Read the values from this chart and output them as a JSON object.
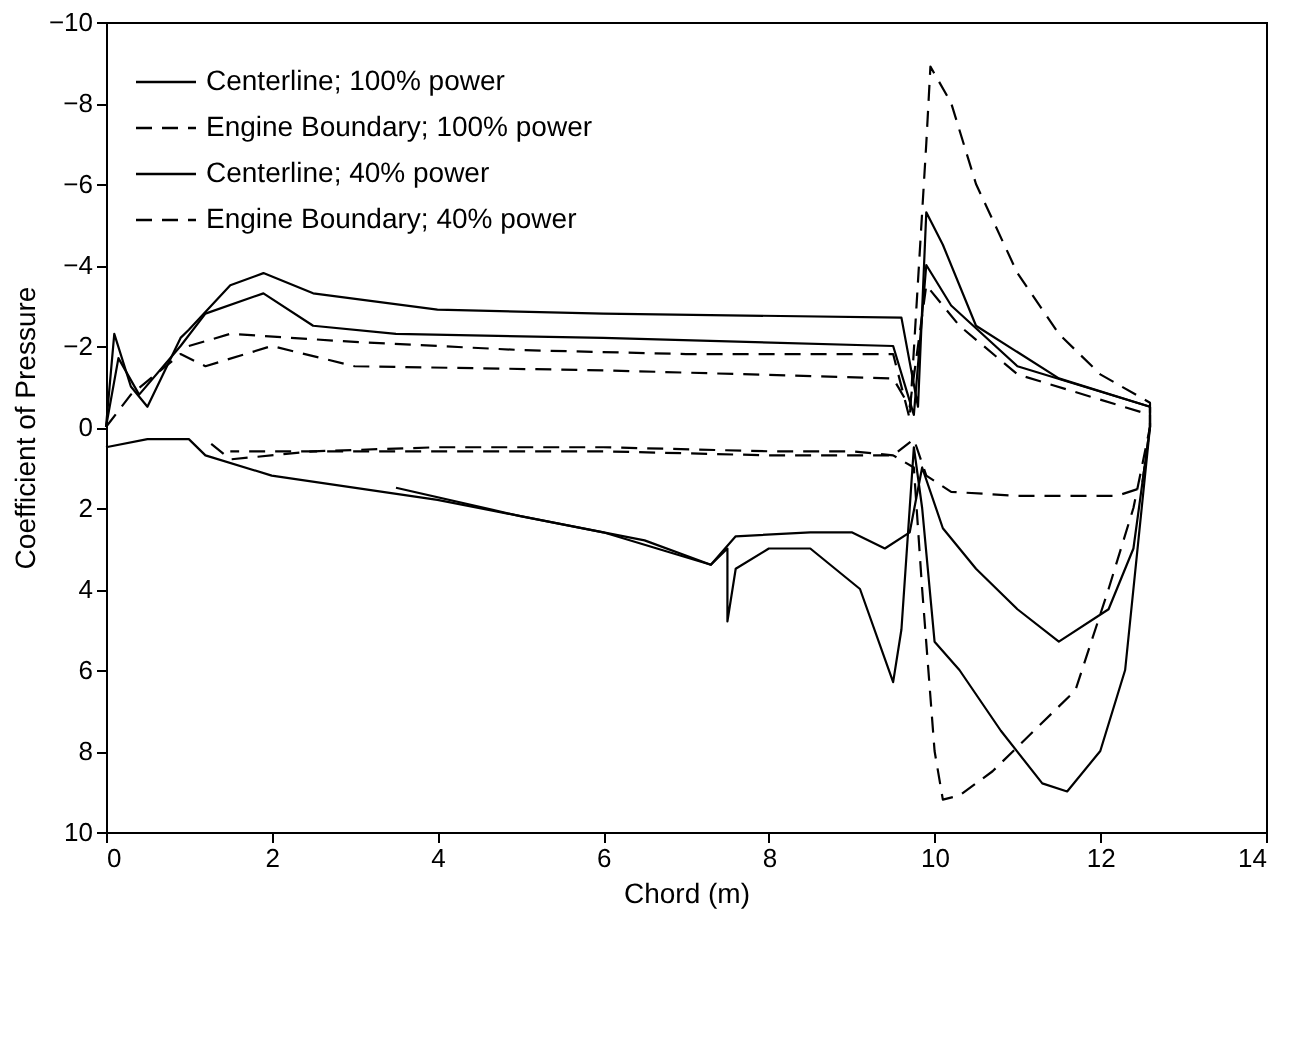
{
  "chart_data": {
    "type": "line",
    "xlabel": "Chord (m)",
    "ylabel": "Coefficient of Pressure",
    "xlim": [
      0,
      14
    ],
    "xticks": [
      0,
      2,
      4,
      6,
      8,
      10,
      12,
      14
    ],
    "ylim": [
      10,
      -10
    ],
    "yticks": [
      -10,
      -8,
      -6,
      -4,
      -2,
      0,
      2,
      4,
      6,
      8,
      10
    ],
    "grid": false,
    "legend": "top left",
    "series": [
      {
        "name": "Centerline; 100% power",
        "color": "#000000",
        "line_style": "solid",
        "x": [
          0,
          0.1,
          0.3,
          0.5,
          0.9,
          1.0,
          1.5,
          1.9,
          2.5,
          4,
          6,
          9.6,
          9.8,
          9.9,
          10.1,
          10.5,
          11.5,
          12.6,
          12.6,
          12.5,
          12.3,
          12,
          11.6,
          11.3,
          10.8,
          10.3,
          10,
          9.85,
          9.75,
          9.6,
          9.5,
          9.1,
          8.5,
          8,
          7.6,
          7.5,
          7.5,
          7.3,
          6,
          4,
          2,
          1.2,
          1,
          0.5,
          0
        ],
        "values": [
          0,
          -2.3,
          -1.0,
          -0.5,
          -2.2,
          -2.4,
          -3.5,
          -3.8,
          -3.3,
          -2.9,
          -2.8,
          -2.7,
          -0.5,
          -5.3,
          -4.5,
          -2.5,
          -1.2,
          -0.5,
          0,
          2,
          6,
          8,
          9,
          8.8,
          7.5,
          6,
          5.3,
          2,
          0.5,
          5,
          6.3,
          4,
          3,
          3,
          3.5,
          4.8,
          3,
          3.4,
          2.6,
          1.8,
          1.2,
          0.7,
          0.3,
          0.3,
          0.5
        ]
      },
      {
        "name": "Engine Boundary; 100% power",
        "color": "#000000",
        "line_style": "dashed",
        "x": [
          1,
          1.5,
          3,
          5,
          7,
          9.5,
          9.7,
          9.9,
          9.95,
          10.2,
          10.5,
          11,
          11.5,
          12,
          12.6,
          12.6,
          12.4,
          12.1,
          11.7,
          11.2,
          10.7,
          10.3,
          10.1,
          10,
          9.85,
          9.75,
          9.5,
          9,
          8,
          6,
          4,
          2.5,
          1.5,
          1.2
        ],
        "values": [
          -2,
          -2.3,
          -2.1,
          -1.9,
          -1.8,
          -1.8,
          -0.2,
          -7,
          -8.9,
          -8,
          -6,
          -3.8,
          -2.3,
          -1.3,
          -0.6,
          0,
          2,
          4,
          6.5,
          7.5,
          8.5,
          9.1,
          9.2,
          8,
          4,
          1,
          0.7,
          0.6,
          0.6,
          0.5,
          0.5,
          0.6,
          0.8,
          0.3
        ]
      },
      {
        "name": "Centerline; 40% power",
        "color": "#000000",
        "line_style": "solid",
        "x": [
          0,
          0.15,
          0.4,
          0.9,
          1.2,
          1.9,
          2.5,
          3.5,
          6,
          9.5,
          9.75,
          9.9,
          10.2,
          11,
          12.6,
          12.6,
          12.4,
          12.1,
          11.5,
          11,
          10.5,
          10.1,
          9.85,
          9.7,
          9.4,
          9.0,
          8.5,
          7.6,
          7.3,
          6.5,
          5,
          3.5
        ],
        "values": [
          0,
          -1.7,
          -0.8,
          -2,
          -2.8,
          -3.3,
          -2.5,
          -2.3,
          -2.2,
          -2.0,
          -0.3,
          -4,
          -3,
          -1.5,
          -0.5,
          0,
          3,
          4.5,
          5.3,
          4.5,
          3.5,
          2.5,
          1,
          2.6,
          3.0,
          2.6,
          2.6,
          2.7,
          3.4,
          2.8,
          2.2,
          1.5
        ]
      },
      {
        "name": "Engine Boundary; 40% power",
        "color": "#000000",
        "line_style": "dashed",
        "x": [
          0,
          0.3,
          0.9,
          1.2,
          2,
          3,
          6,
          9.5,
          9.7,
          9.9,
          10.3,
          11,
          12.6,
          12.6,
          12.5,
          12.2,
          11,
          10.2,
          9.9,
          9.75,
          9.5,
          8,
          6,
          3,
          1.5
        ],
        "values": [
          0,
          -0.8,
          -1.8,
          -1.5,
          -2,
          -1.5,
          -1.4,
          -1.2,
          -0.5,
          -3.5,
          -2.5,
          -1.3,
          -0.3,
          0,
          1.5,
          1.7,
          1.7,
          1.6,
          1.2,
          0.3,
          0.7,
          0.7,
          0.6,
          0.6,
          0.6
        ]
      }
    ]
  }
}
